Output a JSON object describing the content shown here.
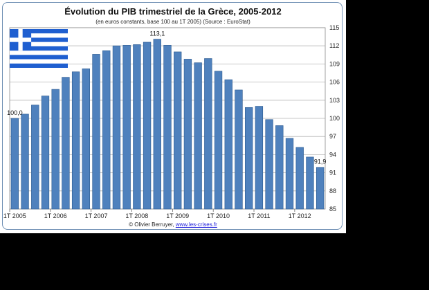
{
  "chart_data": {
    "type": "bar",
    "title": "Évolution du PIB trimestriel de la Grèce, 2005-2012",
    "subtitle": "(en euros constants, base 100 au 1T 2005) (Source : EuroStat)",
    "credit_prefix": "© Olivier Berruyer,",
    "credit_link": "www.les-crises.fr",
    "ylim": [
      85,
      115
    ],
    "yticks": [
      85,
      88,
      91,
      94,
      97,
      100,
      103,
      106,
      109,
      112,
      115
    ],
    "grid": true,
    "x_ticks": [
      {
        "index": 0,
        "label": "1T 2005"
      },
      {
        "index": 4,
        "label": "1T 2006"
      },
      {
        "index": 8,
        "label": "1T 2007"
      },
      {
        "index": 12,
        "label": "1T 2008"
      },
      {
        "index": 16,
        "label": "1T 2009"
      },
      {
        "index": 20,
        "label": "1T 2010"
      },
      {
        "index": 24,
        "label": "1T 2011"
      },
      {
        "index": 28,
        "label": "1T 2012"
      }
    ],
    "values": [
      100.0,
      100.7,
      102.2,
      103.7,
      104.8,
      106.8,
      107.7,
      108.2,
      110.6,
      111.2,
      112.0,
      112.1,
      112.2,
      112.6,
      113.1,
      112.1,
      111.0,
      109.8,
      109.2,
      109.9,
      107.8,
      106.4,
      104.7,
      101.8,
      102.0,
      99.8,
      98.8,
      96.7,
      95.2,
      93.6,
      91.9
    ],
    "data_labels": [
      {
        "index": 0,
        "text": "100,0"
      },
      {
        "index": 14,
        "text": "113,1"
      },
      {
        "index": 30,
        "text": "91,9"
      }
    ],
    "colors": {
      "bar": "#4f81bd",
      "bar_edge": "#2c5a8f",
      "grid": "#b5b5b5"
    }
  },
  "flag": {
    "name": "greece-flag",
    "blue": "#1f5fd0",
    "white": "#ffffff"
  }
}
